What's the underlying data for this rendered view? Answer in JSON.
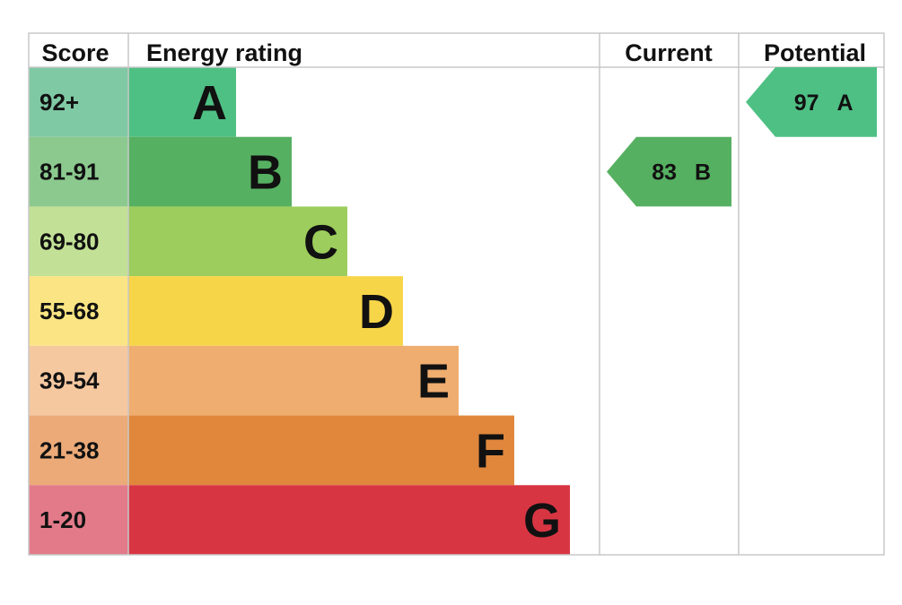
{
  "headers": {
    "score": "Score",
    "energy_rating": "Energy rating",
    "current": "Current",
    "potential": "Potential"
  },
  "chart_data": {
    "type": "bar",
    "bands": [
      {
        "letter": "A",
        "range": "92+",
        "min": 92,
        "max": 100,
        "color": "#4fc084",
        "score_bg": "#7fc9a4"
      },
      {
        "letter": "B",
        "range": "81-91",
        "min": 81,
        "max": 91,
        "color": "#56b061",
        "score_bg": "#8cc98e"
      },
      {
        "letter": "C",
        "range": "69-80",
        "min": 69,
        "max": 80,
        "color": "#9dcd5c",
        "score_bg": "#c2e196"
      },
      {
        "letter": "D",
        "range": "55-68",
        "min": 55,
        "max": 68,
        "color": "#f7d548",
        "score_bg": "#fbe483"
      },
      {
        "letter": "E",
        "range": "39-54",
        "min": 39,
        "max": 54,
        "color": "#efad70",
        "score_bg": "#f5c8a0"
      },
      {
        "letter": "F",
        "range": "21-38",
        "min": 21,
        "max": 38,
        "color": "#e0873c",
        "score_bg": "#ebaa78"
      },
      {
        "letter": "G",
        "range": "1-20",
        "min": 1,
        "max": 20,
        "color": "#d83543",
        "score_bg": "#e27a89"
      }
    ],
    "current": {
      "value": 83,
      "letter": "B",
      "color": "#56b061"
    },
    "potential": {
      "value": 97,
      "letter": "A",
      "color": "#4fc084"
    }
  }
}
